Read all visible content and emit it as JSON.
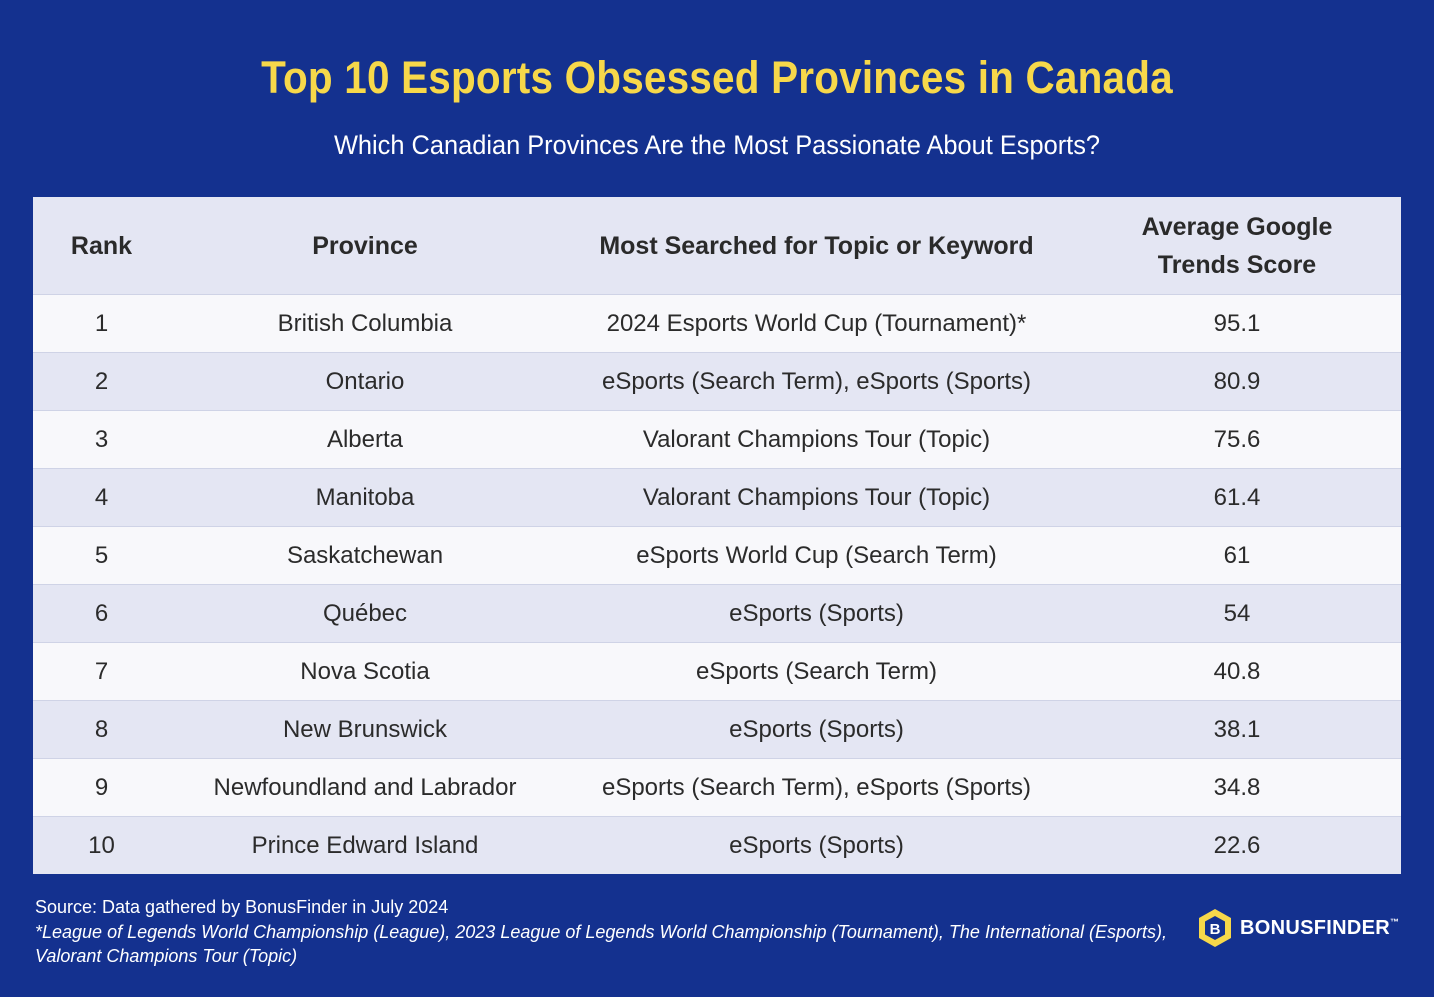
{
  "title": "Top 10 Esports Obsessed Provinces in Canada",
  "subtitle": "Which Canadian Provinces Are the Most Passionate About Esports?",
  "table": {
    "headers": [
      "Rank",
      "Province",
      "Most Searched for Topic or Keyword",
      "Average Google Trends Score"
    ],
    "rows": [
      [
        "1",
        "British Columbia",
        "2024 Esports World Cup (Tournament)*",
        "95.1"
      ],
      [
        "2",
        "Ontario",
        "eSports (Search Term), eSports (Sports)",
        "80.9"
      ],
      [
        "3",
        "Alberta",
        "Valorant Champions Tour (Topic)",
        "75.6"
      ],
      [
        "4",
        "Manitoba",
        "Valorant Champions Tour (Topic)",
        "61.4"
      ],
      [
        "5",
        "Saskatchewan",
        "eSports World Cup (Search Term)",
        "61"
      ],
      [
        "6",
        "Québec",
        "eSports (Sports)",
        "54"
      ],
      [
        "7",
        "Nova Scotia",
        "eSports (Search Term)",
        "40.8"
      ],
      [
        "8",
        "New Brunswick",
        "eSports (Sports)",
        "38.1"
      ],
      [
        "9",
        "Newfoundland and Labrador",
        "eSports (Search Term), eSports (Sports)",
        "34.8"
      ],
      [
        "10",
        "Prince Edward Island",
        "eSports (Sports)",
        "22.6"
      ]
    ]
  },
  "footer": {
    "source": "Source: Data gathered by BonusFinder in July 2024",
    "note": "*League of Legends World Championship (League), 2023 League of Legends World Championship (Tournament), The International (Esports), Valorant Champions Tour (Topic)"
  },
  "logo": {
    "icon": "bonusfinder-hex-icon",
    "text_bold": "BONUS",
    "text_rest": "FINDER",
    "tm": "™",
    "color": "#f7d84a"
  },
  "colors": {
    "background": "#14318f",
    "title": "#f7d84a",
    "row_light": "#f8f8fb",
    "row_dark": "#e4e6f3"
  }
}
